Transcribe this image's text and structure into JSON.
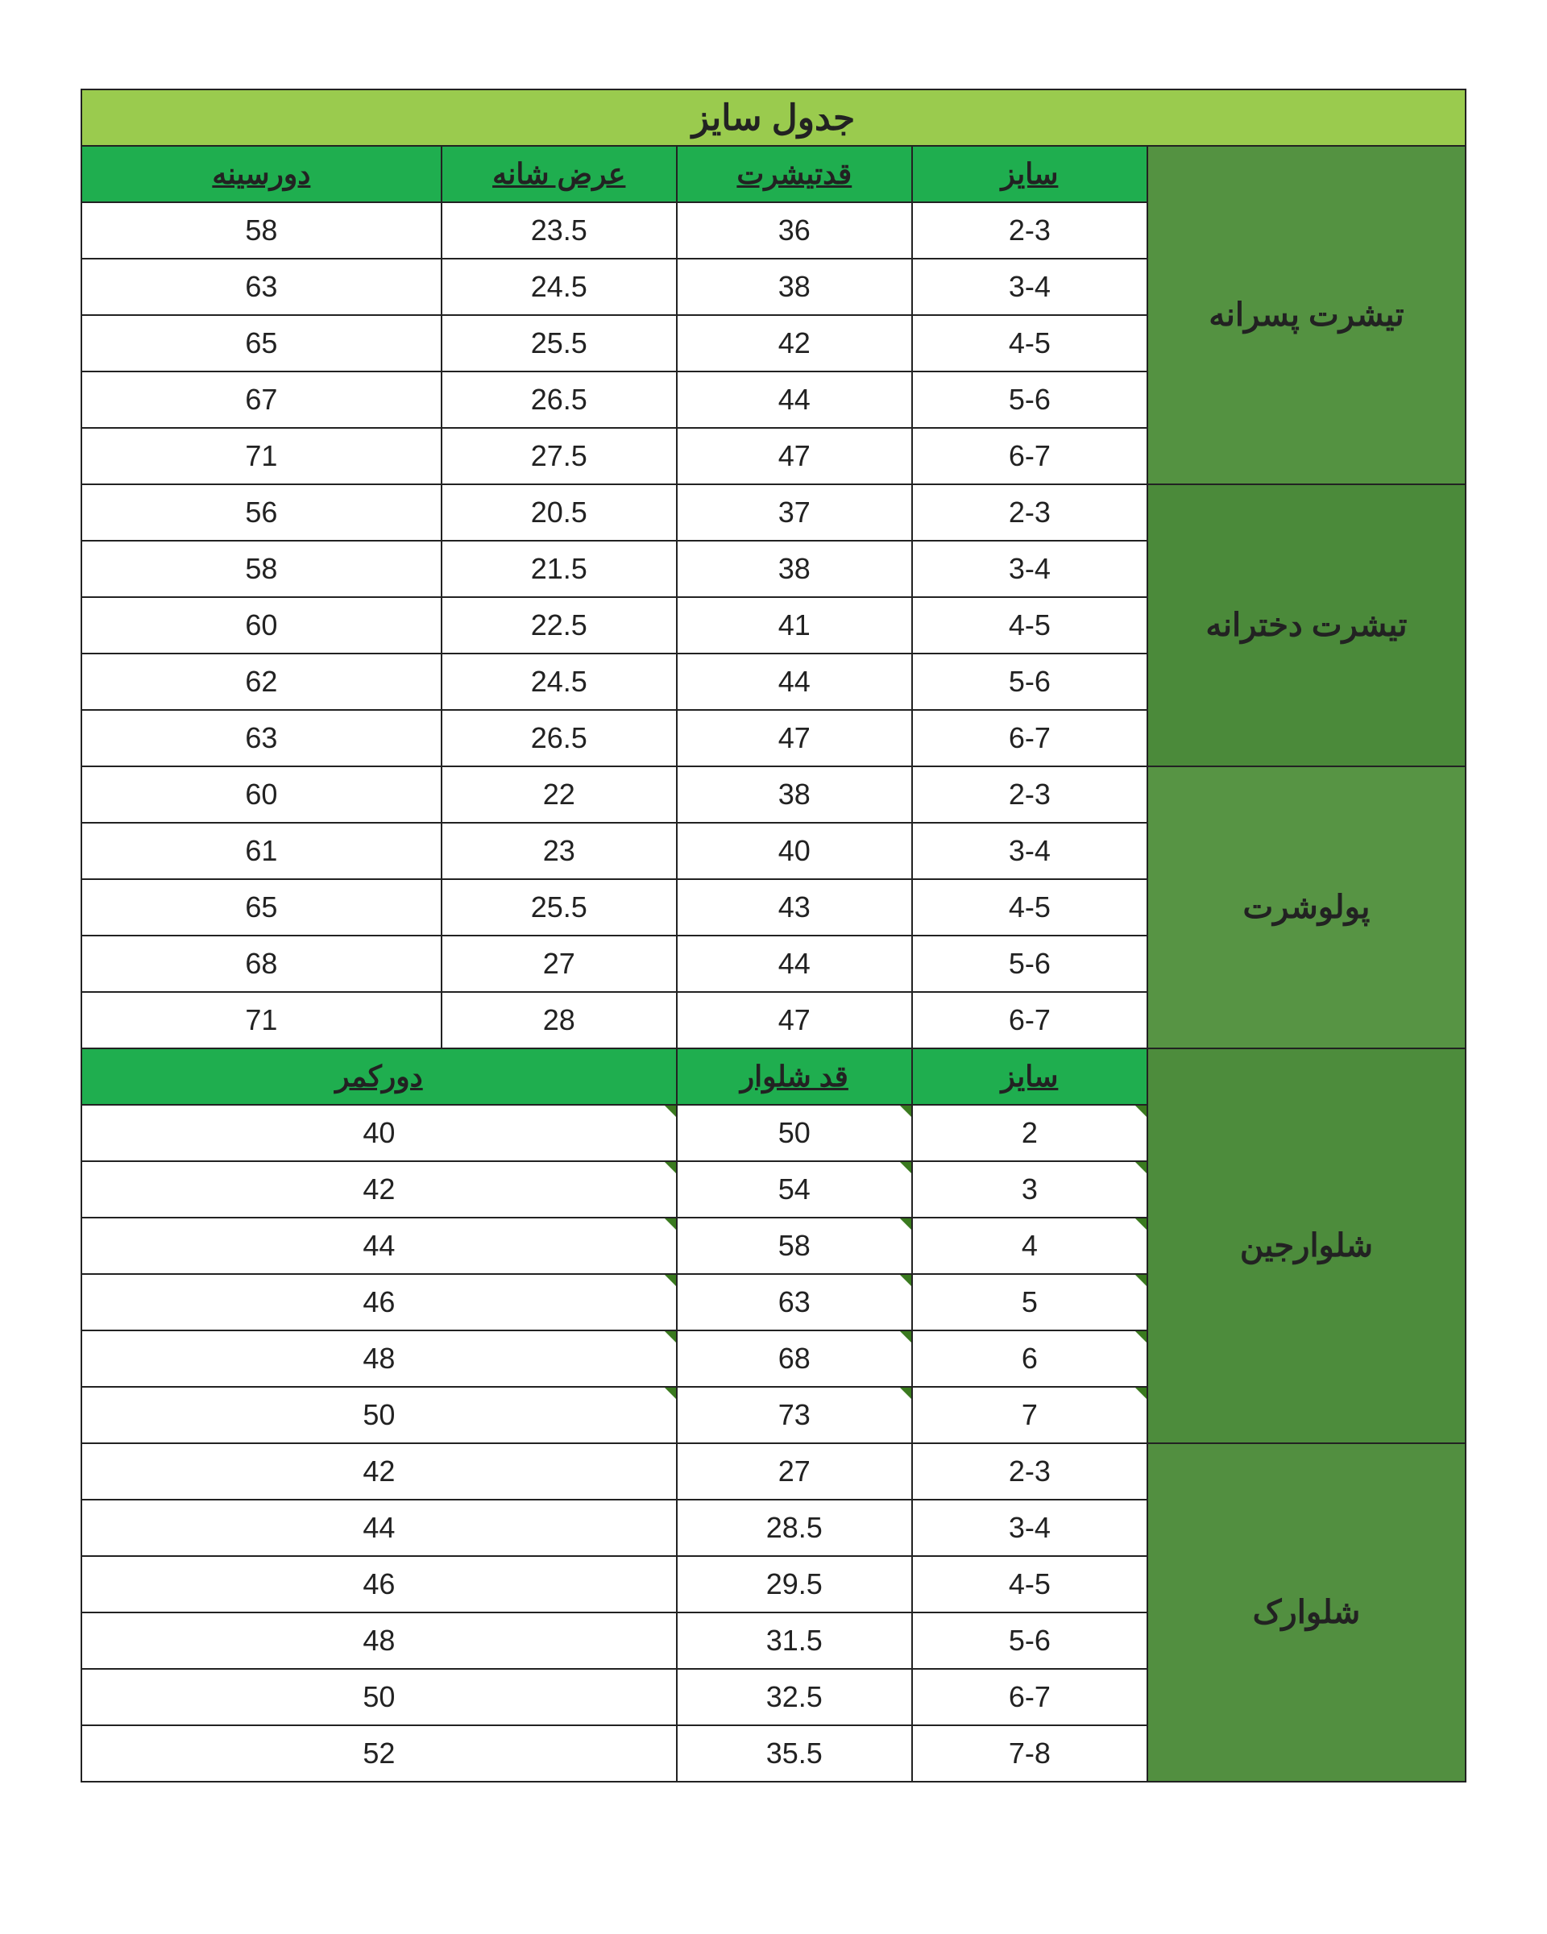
{
  "colors": {
    "title_bg": "#9acb4e",
    "header_bg_1": "#1fae4f",
    "cat_bg_1": "#549241",
    "cat_bg_2": "#4b8a3a",
    "cat_bg_3": "#579444",
    "cat_bg_4": "#4d8c3c",
    "cat_bg_5": "#528f40",
    "border": "#222222",
    "text": "#222222"
  },
  "title": "جدول سایز",
  "headers_top": {
    "c1": "سایز",
    "c2": "قدتیشرت",
    "c3": "عرض شانه",
    "c4": "دورسینه"
  },
  "headers_mid": {
    "c1": "سایز",
    "c2": "قد شلوار",
    "c3": "دورکمر"
  },
  "sections": {
    "boys_tshirt": {
      "label": "تیشرت پسرانه",
      "rows": [
        [
          "2-3",
          "36",
          "23.5",
          "58"
        ],
        [
          "3-4",
          "38",
          "24.5",
          "63"
        ],
        [
          "4-5",
          "42",
          "25.5",
          "65"
        ],
        [
          "5-6",
          "44",
          "26.5",
          "67"
        ],
        [
          "6-7",
          "47",
          "27.5",
          "71"
        ]
      ]
    },
    "girls_tshirt": {
      "label": "تیشرت دخترانه",
      "rows": [
        [
          "2-3",
          "37",
          "20.5",
          "56"
        ],
        [
          "3-4",
          "38",
          "21.5",
          "58"
        ],
        [
          "4-5",
          "41",
          "22.5",
          "60"
        ],
        [
          "5-6",
          "44",
          "24.5",
          "62"
        ],
        [
          "6-7",
          "47",
          "26.5",
          "63"
        ]
      ]
    },
    "polo": {
      "label": "پولوشرت",
      "rows": [
        [
          "2-3",
          "38",
          "22",
          "60"
        ],
        [
          "3-4",
          "40",
          "23",
          "61"
        ],
        [
          "4-5",
          "43",
          "25.5",
          "65"
        ],
        [
          "5-6",
          "44",
          "27",
          "68"
        ],
        [
          "6-7",
          "47",
          "28",
          "71"
        ]
      ]
    },
    "jeans": {
      "label": "شلوارجین",
      "rows": [
        [
          "2",
          "50",
          "40"
        ],
        [
          "3",
          "54",
          "42"
        ],
        [
          "4",
          "58",
          "44"
        ],
        [
          "5",
          "63",
          "46"
        ],
        [
          "6",
          "68",
          "48"
        ],
        [
          "7",
          "73",
          "50"
        ]
      ]
    },
    "shorts": {
      "label": "شلوارک",
      "rows": [
        [
          "2-3",
          "27",
          "42"
        ],
        [
          "3-4",
          "28.5",
          "44"
        ],
        [
          "4-5",
          "29.5",
          "46"
        ],
        [
          "5-6",
          "31.5",
          "48"
        ],
        [
          "6-7",
          "32.5",
          "50"
        ],
        [
          "7-8",
          "35.5",
          "52"
        ]
      ]
    }
  }
}
